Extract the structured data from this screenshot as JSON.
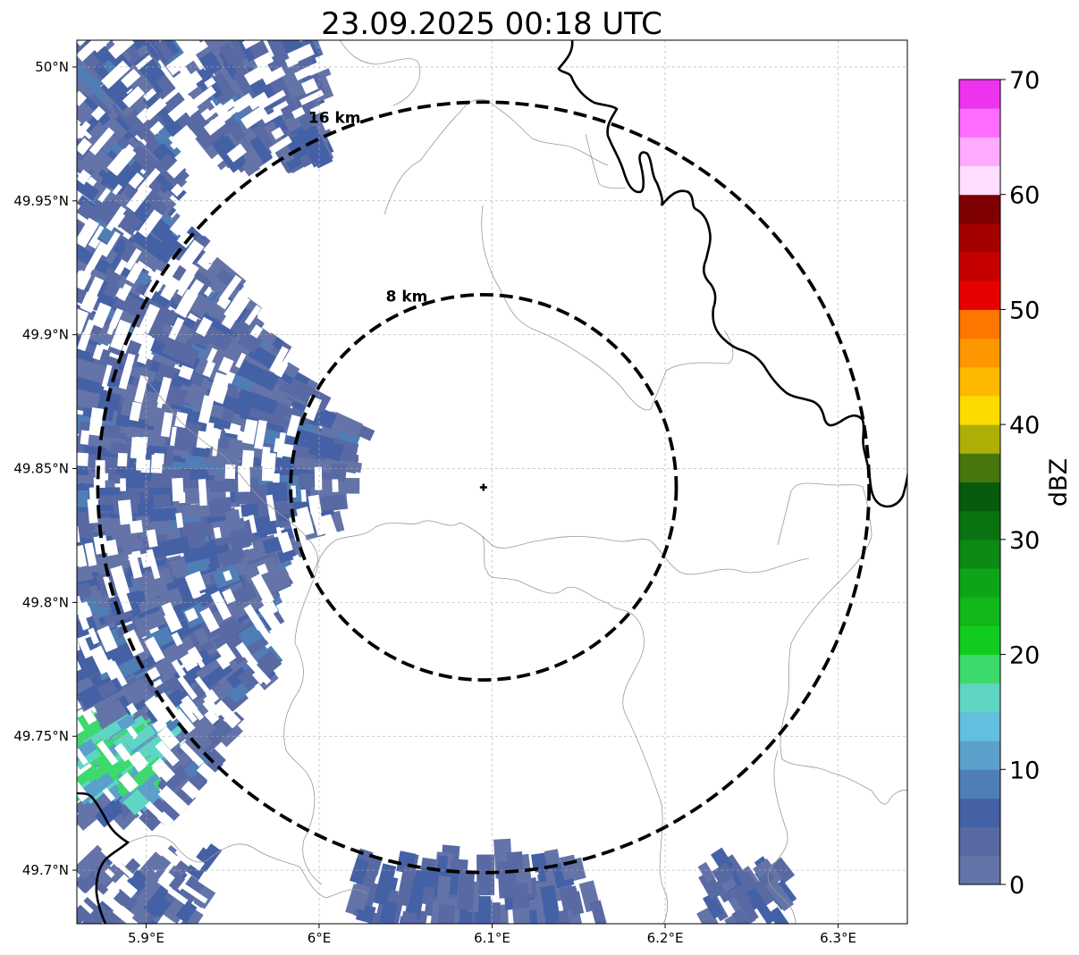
{
  "title": "23.09.2025 00:18 UTC",
  "map": {
    "lon_range": [
      5.86,
      6.34
    ],
    "lat_range": [
      49.68,
      50.01
    ],
    "radar_site": {
      "lon": 6.095,
      "lat": 49.843
    },
    "lon_ticks": [
      {
        "value": 5.9,
        "label": "5.9°E"
      },
      {
        "value": 6.0,
        "label": "6°E"
      },
      {
        "value": 6.1,
        "label": "6.1°E"
      },
      {
        "value": 6.2,
        "label": "6.2°E"
      },
      {
        "value": 6.3,
        "label": "6.3°E"
      }
    ],
    "lat_ticks": [
      {
        "value": 50.0,
        "label": "50°N"
      },
      {
        "value": 49.95,
        "label": "49.95°N"
      },
      {
        "value": 49.9,
        "label": "49.9°N"
      },
      {
        "value": 49.85,
        "label": "49.85°N"
      },
      {
        "value": 49.8,
        "label": "49.8°N"
      },
      {
        "value": 49.75,
        "label": "49.75°N"
      },
      {
        "value": 49.7,
        "label": "49.7°N"
      }
    ],
    "range_rings": [
      {
        "label": "8 km",
        "radius_km": 8
      },
      {
        "label": "16 km",
        "radius_km": 16
      }
    ]
  },
  "colorbar": {
    "label": "dBZ",
    "min": 0,
    "max": 70,
    "step": 2.5,
    "tick_labels": [
      "0",
      "10",
      "20",
      "30",
      "40",
      "50",
      "60",
      "70"
    ],
    "colors": [
      "#6474a8",
      "#5869a3",
      "#4561a6",
      "#4f7db5",
      "#5aa0cb",
      "#62c0de",
      "#5fd6c4",
      "#3cd96c",
      "#11cc1e",
      "#12b81a",
      "#0ea418",
      "#0c8a14",
      "#0a7210",
      "#065c0c",
      "#46760d",
      "#adae06",
      "#fddb00",
      "#fdb800",
      "#fd9700",
      "#fd7700",
      "#e60000",
      "#c60000",
      "#a40000",
      "#7f0000",
      "#ffddff",
      "#ffaaff",
      "#ff6cff",
      "#ee33ee"
    ]
  },
  "echoes": {
    "levels_dbz": [
      2,
      4,
      6,
      8,
      12,
      15,
      18
    ]
  }
}
